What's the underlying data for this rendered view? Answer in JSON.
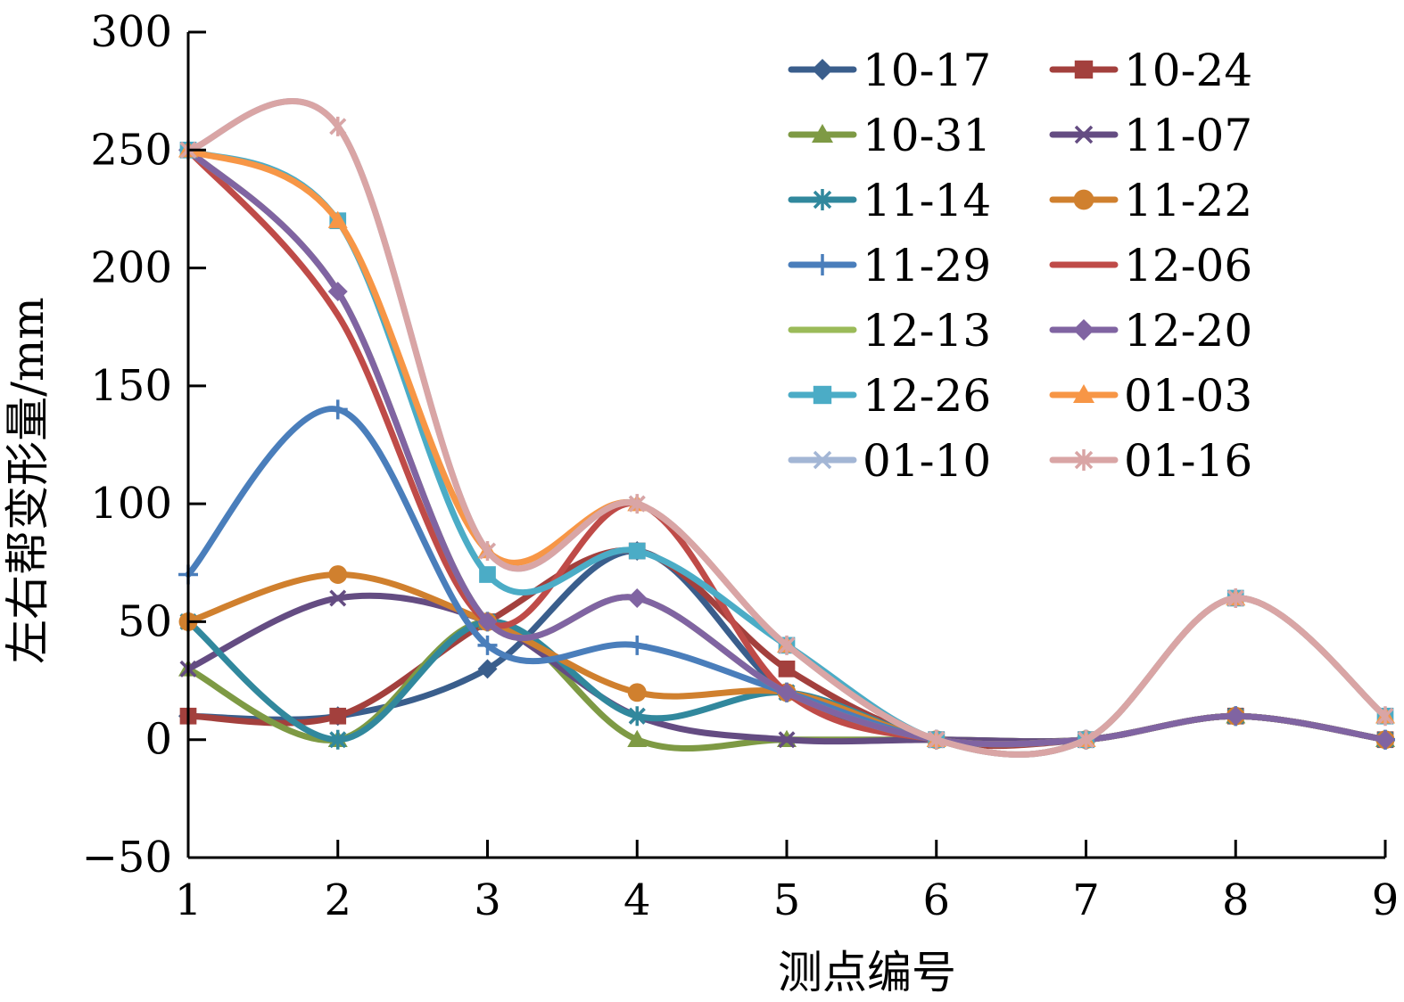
{
  "chart_data": {
    "type": "line",
    "smooth": true,
    "title": "",
    "xlabel": "测点编号",
    "ylabel": "左右帮变形量/mm",
    "x": [
      1,
      2,
      3,
      4,
      5,
      6,
      7,
      8,
      9
    ],
    "x_tick_labels": [
      "1",
      "2",
      "3",
      "4",
      "5",
      "6",
      "7",
      "8",
      "9"
    ],
    "ylim": [
      -50,
      300
    ],
    "y_ticks": [
      300,
      250,
      200,
      150,
      100,
      50,
      0,
      -50
    ],
    "y_tick_labels": [
      "300",
      "250",
      "200",
      "150",
      "100",
      "50",
      "0",
      "−50"
    ],
    "legend_position": "top-right, two columns",
    "series": [
      {
        "name": "10-17",
        "color": "#3A5E8C",
        "marker": "diamond",
        "values": [
          10,
          10,
          30,
          80,
          20,
          0,
          0,
          10,
          0
        ]
      },
      {
        "name": "10-24",
        "color": "#A3403D",
        "marker": "square",
        "values": [
          10,
          10,
          50,
          80,
          30,
          0,
          0,
          10,
          0
        ]
      },
      {
        "name": "10-31",
        "color": "#7E9A44",
        "marker": "triangle",
        "values": [
          30,
          0,
          50,
          0,
          0,
          0,
          0,
          10,
          0
        ]
      },
      {
        "name": "11-07",
        "color": "#644C82",
        "marker": "x",
        "values": [
          30,
          60,
          50,
          10,
          0,
          0,
          0,
          10,
          0
        ]
      },
      {
        "name": "11-14",
        "color": "#31889D",
        "marker": "star",
        "values": [
          50,
          0,
          50,
          10,
          20,
          0,
          0,
          10,
          0
        ]
      },
      {
        "name": "11-22",
        "color": "#D0802E",
        "marker": "circle",
        "values": [
          50,
          70,
          50,
          20,
          20,
          0,
          0,
          10,
          0
        ]
      },
      {
        "name": "11-29",
        "color": "#4A7EBB",
        "marker": "plus",
        "values": [
          70,
          140,
          40,
          40,
          20,
          0,
          0,
          10,
          0
        ]
      },
      {
        "name": "12-06",
        "color": "#BF4B48",
        "marker": "none",
        "values": [
          250,
          180,
          50,
          100,
          20,
          0,
          0,
          10,
          0
        ]
      },
      {
        "name": "12-13",
        "color": "#9BBB59",
        "marker": "none",
        "values": [
          250,
          190,
          50,
          60,
          20,
          0,
          0,
          10,
          0
        ]
      },
      {
        "name": "12-20",
        "color": "#8064A2",
        "marker": "diamond",
        "values": [
          250,
          190,
          50,
          60,
          20,
          0,
          0,
          10,
          0
        ]
      },
      {
        "name": "12-26",
        "color": "#4BACC6",
        "marker": "square",
        "values": [
          250,
          220,
          70,
          80,
          40,
          0,
          0,
          60,
          10
        ]
      },
      {
        "name": "01-03",
        "color": "#F79646",
        "marker": "triangle",
        "values": [
          250,
          220,
          80,
          100,
          40,
          0,
          0,
          60,
          10
        ]
      },
      {
        "name": "01-10",
        "color": "#A3B6D5",
        "marker": "x",
        "values": [
          250,
          260,
          80,
          100,
          40,
          0,
          0,
          60,
          10
        ]
      },
      {
        "name": "01-16",
        "color": "#D9A5A5",
        "marker": "star",
        "values": [
          250,
          260,
          80,
          100,
          40,
          0,
          0,
          60,
          10
        ]
      }
    ]
  }
}
